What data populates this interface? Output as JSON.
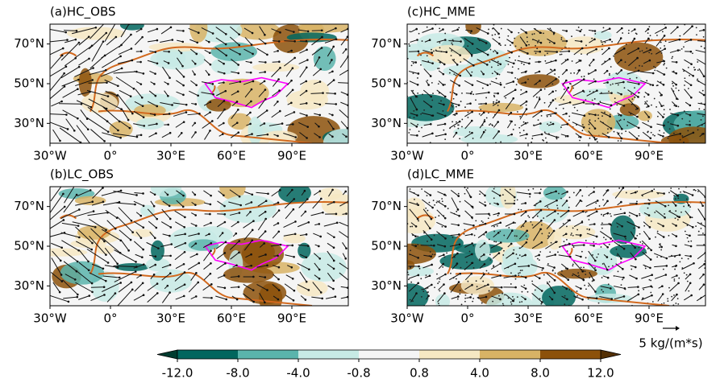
{
  "panels": [
    {
      "title": "(a)HC_OBS"
    },
    {
      "title": "(b)LC_OBS"
    },
    {
      "title": "(c)HC_MME"
    },
    {
      "title": "(d)LC_MME"
    }
  ],
  "xlim": [
    -30,
    118
  ],
  "ylim": [
    20,
    80
  ],
  "xticks": [
    {
      "value": -30,
      "label": "30°W"
    },
    {
      "value": 0,
      "label": "0°"
    },
    {
      "value": 30,
      "label": "30°E"
    },
    {
      "value": 60,
      "label": "60°E"
    },
    {
      "value": 90,
      "label": "90°E"
    }
  ],
  "yticks": [
    {
      "value": 30,
      "label": "30°N"
    },
    {
      "value": 50,
      "label": "50°N"
    },
    {
      "value": 70,
      "label": "70°N"
    }
  ],
  "colorbar": {
    "ticks": [
      "-12.0",
      "-8.0",
      "-4.0",
      "-0.8",
      "0.8",
      "4.0",
      "8.0",
      "12.0"
    ],
    "colors": [
      "#003c30",
      "#01665e",
      "#5ab4ac",
      "#c7eae5",
      "#f5f5f5",
      "#f6e8c3",
      "#d8b365",
      "#8c510a",
      "#543005"
    ]
  },
  "reference_vector": "5 kg/(m*s)"
}
